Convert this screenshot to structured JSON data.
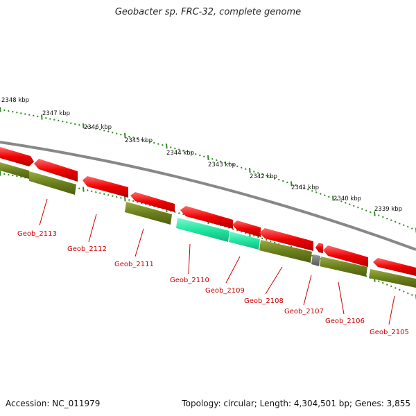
{
  "title": "Geobacter sp. FRC-32, complete genome",
  "footer": {
    "accession": "Accession: NC_011979",
    "summary": "Topology: circular; Length: 4,304,501 bp; Genes: 3,855"
  },
  "colors": {
    "reverse_cds": "#ee0000",
    "forward_cds": "#6b7f1c",
    "highlight_cds": "#22e6a0",
    "small_feature": "#6a6a6a",
    "backbone": "#888888",
    "tick": "#2e8b22",
    "gene_label": "#cc0000",
    "scale_label": "#111111"
  },
  "scale_labels": [
    "2348 kbp",
    "2347 kbp",
    "2346 kbp",
    "2345 kbp",
    "2344 kbp",
    "2343 kbp",
    "2342 kbp",
    "2341 kbp",
    "2340 kbp",
    "2339 kbp"
  ],
  "gene_labels": [
    "Geob_2113",
    "Geob_2112",
    "Geob_2111",
    "Geob_2110",
    "Geob_2109",
    "Geob_2108",
    "Geob_2107",
    "Geob_2106",
    "Geob_2105"
  ]
}
